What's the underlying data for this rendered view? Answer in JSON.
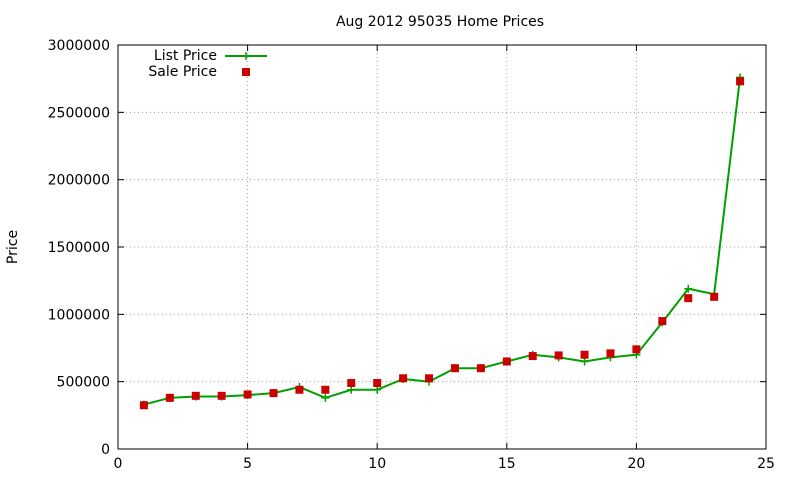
{
  "chart_data": {
    "type": "line",
    "title": "Aug 2012 95035 Home Prices",
    "xlabel": "",
    "ylabel": "Price",
    "xlim": [
      0,
      25
    ],
    "ylim": [
      0,
      3000000
    ],
    "xticks": [
      0,
      5,
      10,
      15,
      20,
      25
    ],
    "yticks": [
      0,
      500000,
      1000000,
      1500000,
      2000000,
      2500000,
      3000000
    ],
    "grid": true,
    "legend_position": "top-left",
    "series": [
      {
        "name": "List Price",
        "style": "line+cross",
        "color": "#00a000",
        "x": [
          1,
          2,
          3,
          4,
          5,
          6,
          7,
          8,
          9,
          10,
          11,
          12,
          13,
          14,
          15,
          16,
          17,
          18,
          19,
          20,
          21,
          22,
          23,
          24
        ],
        "y": [
          330000,
          380000,
          390000,
          390000,
          400000,
          415000,
          460000,
          380000,
          440000,
          440000,
          520000,
          500000,
          600000,
          600000,
          650000,
          700000,
          680000,
          650000,
          680000,
          700000,
          940000,
          1190000,
          1150000,
          2760000
        ]
      },
      {
        "name": "Sale Price",
        "style": "points",
        "color": "#cc0000",
        "x": [
          1,
          2,
          3,
          4,
          5,
          6,
          7,
          8,
          9,
          10,
          11,
          12,
          13,
          14,
          15,
          16,
          17,
          18,
          19,
          20,
          21,
          22,
          23,
          24
        ],
        "y": [
          325000,
          380000,
          395000,
          395000,
          405000,
          415000,
          440000,
          440000,
          490000,
          490000,
          525000,
          525000,
          600000,
          600000,
          650000,
          690000,
          695000,
          700000,
          710000,
          740000,
          950000,
          1120000,
          1130000,
          2730000
        ]
      }
    ]
  }
}
